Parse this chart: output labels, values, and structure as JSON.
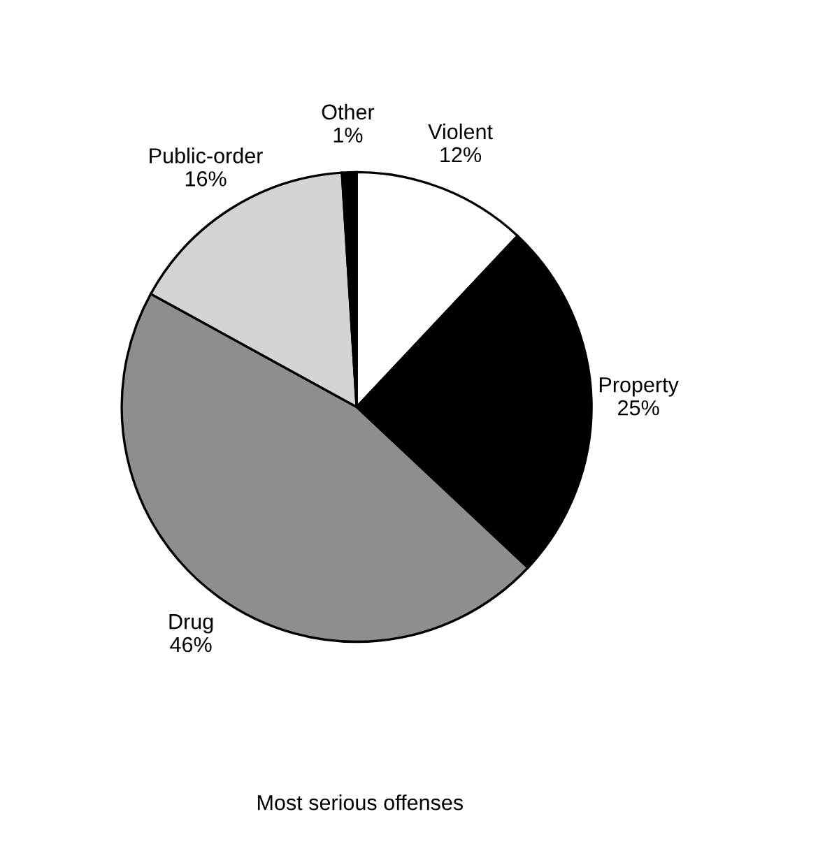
{
  "chart_data": {
    "type": "pie",
    "title": "Most serious offenses",
    "categories": [
      "Violent",
      "Property",
      "Drug",
      "Public-order",
      "Other"
    ],
    "values": [
      12,
      25,
      46,
      16,
      1
    ],
    "value_labels": [
      "12%",
      "25%",
      "46%",
      "16%",
      "1%"
    ],
    "colors": [
      "#ffffff",
      "#000000",
      "#8e8e8e",
      "#d4d4d4",
      "#000000"
    ]
  }
}
